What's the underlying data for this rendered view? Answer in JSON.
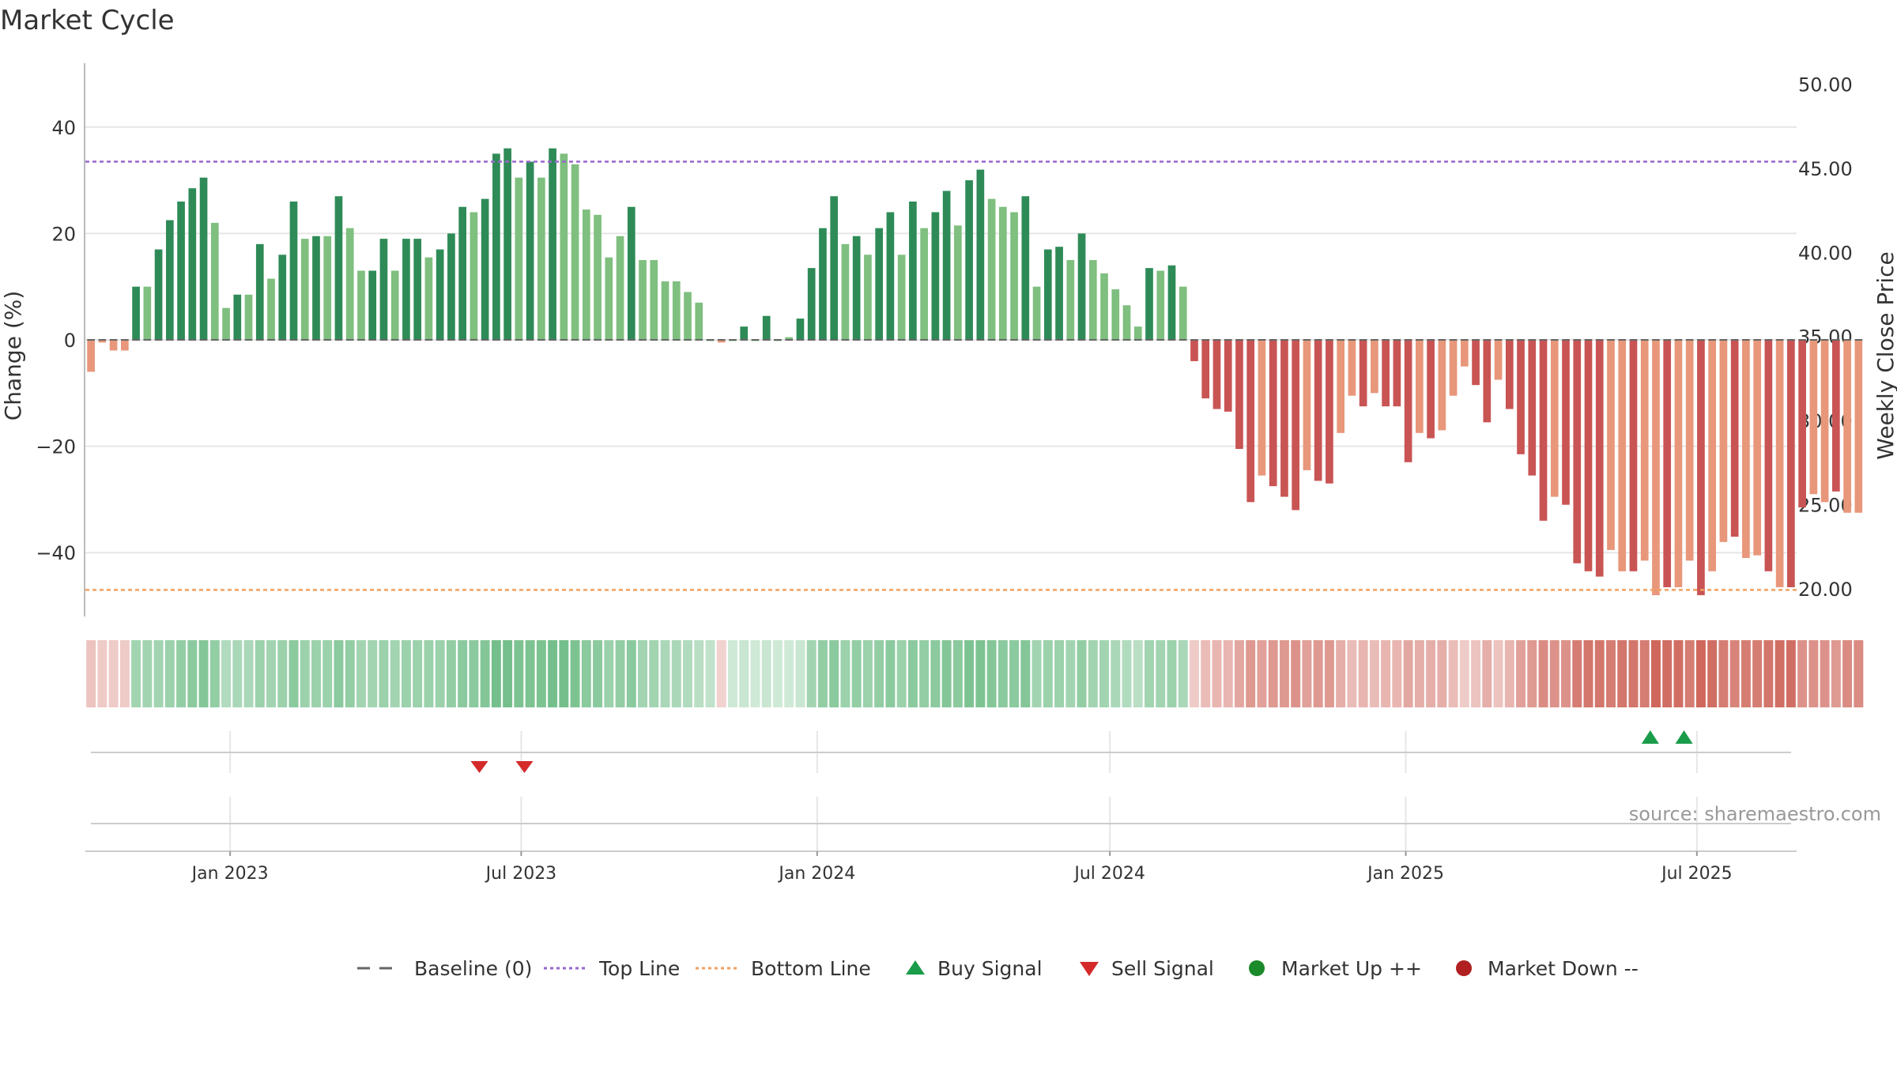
{
  "chart_data": {
    "type": "bar",
    "title": "Market Cycle",
    "ylabel_left": "Change (%)",
    "ylabel_right": "Weekly Close Price",
    "ylim_left": [
      -52,
      52
    ],
    "yticks_left": [
      40,
      20,
      0,
      -20,
      -40
    ],
    "yticks_left_labels": [
      "40",
      "20",
      "0",
      "−20",
      "−40"
    ],
    "ylim_right": [
      18.35,
      51.25
    ],
    "yticks_right": [
      50,
      45,
      40,
      35,
      30,
      25,
      20
    ],
    "yticks_right_labels": [
      "50.00",
      "45.00",
      "40.00",
      "35.00",
      "30.00",
      "25.00",
      "20.00"
    ],
    "x_start": "2022-10-03",
    "x_end": "2025-09-01",
    "xticks": [
      "2023-01-01",
      "2023-07-01",
      "2024-01-01",
      "2024-07-01",
      "2025-01-01",
      "2025-07-01"
    ],
    "xtick_labels": [
      "Jan 2023",
      "Jul 2023",
      "Jan 2024",
      "Jul 2024",
      "Jan 2025",
      "Jul 2025"
    ],
    "bar_start_date": "2022-10-03",
    "bar_interval_days": 7,
    "values": [
      -6,
      -0.5,
      -2,
      -2,
      10,
      10,
      17,
      22.5,
      26,
      28.5,
      30.5,
      22,
      6,
      8.5,
      8.5,
      18,
      11.5,
      16,
      26,
      19,
      19.5,
      19.5,
      27,
      21,
      13,
      13,
      19,
      13,
      19,
      19,
      15.5,
      17,
      20,
      25,
      24,
      26.5,
      35,
      36,
      30.5,
      33.5,
      30.5,
      36,
      35,
      33,
      24.5,
      23.5,
      15.5,
      19.5,
      25,
      15,
      15,
      11,
      11,
      9,
      7,
      0,
      -0.5,
      0,
      2.5,
      0,
      4.5,
      0,
      0.5,
      4,
      13.5,
      21,
      27,
      18,
      19.5,
      16,
      21,
      24,
      16,
      26,
      21,
      24,
      28,
      21.5,
      30,
      32,
      26.5,
      25,
      24,
      27,
      10,
      17,
      17.5,
      15,
      20,
      15,
      12.5,
      9.5,
      6.5,
      2.5,
      13.5,
      13,
      14,
      10,
      -4,
      -11,
      -13,
      -13.5,
      -20.5,
      -30.5,
      -25.5,
      -27.5,
      -29.5,
      -32,
      -24.5,
      -26.5,
      -27,
      -17.5,
      -10.5,
      -12.5,
      -10,
      -12.5,
      -12.5,
      -23,
      -17.5,
      -18.5,
      -17,
      -10.5,
      -5,
      -8.5,
      -15.5,
      -7.5,
      -13,
      -21.5,
      -25.5,
      -34,
      -29.5,
      -31,
      -42,
      -43.5,
      -44.5,
      -39.5,
      -43.5,
      -43.5,
      -41.5,
      -48,
      -46.5,
      -46.5,
      -41.5,
      -48,
      -43.5,
      -38,
      -37,
      -41,
      -40.5,
      -43.5,
      -46.5,
      -46.5,
      -31.5,
      -29,
      -30.5,
      -28.5,
      -32.5,
      -32.5
    ],
    "bar_strength": [
      0,
      0,
      0,
      0,
      1,
      0,
      1,
      1,
      1,
      1,
      1,
      0,
      0,
      1,
      0,
      1,
      0,
      1,
      1,
      0,
      1,
      0,
      1,
      0,
      0,
      1,
      1,
      0,
      1,
      1,
      0,
      1,
      1,
      1,
      0,
      1,
      1,
      1,
      0,
      1,
      0,
      1,
      0,
      0,
      0,
      0,
      0,
      0,
      1,
      0,
      0,
      0,
      0,
      0,
      0,
      0,
      0,
      0,
      1,
      0,
      1,
      0,
      0,
      1,
      1,
      1,
      1,
      0,
      1,
      0,
      1,
      1,
      0,
      1,
      0,
      1,
      1,
      0,
      1,
      1,
      0,
      0,
      0,
      1,
      0,
      1,
      1,
      0,
      1,
      0,
      0,
      0,
      0,
      0,
      1,
      0,
      1,
      0,
      1,
      1,
      1,
      1,
      1,
      1,
      0,
      1,
      1,
      1,
      0,
      1,
      1,
      0,
      0,
      1,
      0,
      1,
      1,
      1,
      0,
      1,
      0,
      0,
      0,
      1,
      1,
      0,
      1,
      1,
      1,
      1,
      0,
      1,
      1,
      1,
      1,
      0,
      0,
      1,
      0,
      0,
      1,
      0,
      0,
      1,
      0,
      0,
      1,
      0,
      0,
      1,
      0,
      1,
      1,
      0,
      0,
      1,
      0,
      0,
      0,
      1,
      1
    ],
    "price_line": {
      "note": "price line not drawn in image",
      "values": []
    },
    "top_line": 33.5,
    "bottom_line": -47,
    "baseline": 0,
    "heat_strip": [
      0.25,
      0.2,
      0.2,
      0.2,
      0.45,
      0.45,
      0.45,
      0.5,
      0.55,
      0.6,
      0.65,
      0.55,
      0.35,
      0.4,
      0.4,
      0.5,
      0.45,
      0.5,
      0.6,
      0.5,
      0.5,
      0.5,
      0.6,
      0.55,
      0.45,
      0.45,
      0.5,
      0.45,
      0.5,
      0.5,
      0.5,
      0.5,
      0.55,
      0.6,
      0.6,
      0.65,
      0.75,
      0.75,
      0.7,
      0.7,
      0.7,
      0.75,
      0.75,
      0.7,
      0.6,
      0.6,
      0.5,
      0.55,
      0.6,
      0.45,
      0.45,
      0.4,
      0.4,
      0.35,
      0.3,
      0.25,
      0.15,
      0.15,
      0.2,
      0.15,
      0.2,
      0.15,
      0.15,
      0.2,
      0.45,
      0.55,
      0.6,
      0.5,
      0.55,
      0.5,
      0.55,
      0.6,
      0.5,
      0.6,
      0.55,
      0.6,
      0.65,
      0.6,
      0.7,
      0.7,
      0.65,
      0.6,
      0.6,
      0.65,
      0.45,
      0.5,
      0.5,
      0.45,
      0.55,
      0.45,
      0.45,
      0.4,
      0.35,
      0.3,
      0.45,
      0.45,
      0.5,
      0.4,
      0.2,
      0.3,
      0.35,
      0.35,
      0.45,
      0.55,
      0.5,
      0.55,
      0.55,
      0.6,
      0.5,
      0.55,
      0.55,
      0.4,
      0.3,
      0.35,
      0.3,
      0.35,
      0.35,
      0.45,
      0.4,
      0.4,
      0.4,
      0.3,
      0.2,
      0.25,
      0.4,
      0.25,
      0.35,
      0.5,
      0.55,
      0.65,
      0.6,
      0.6,
      0.75,
      0.8,
      0.8,
      0.75,
      0.8,
      0.8,
      0.75,
      0.9,
      0.85,
      0.85,
      0.75,
      0.9,
      0.85,
      0.75,
      0.7,
      0.75,
      0.75,
      0.8,
      0.85,
      0.85,
      0.6,
      0.6,
      0.6,
      0.55,
      0.65,
      0.65
    ],
    "signals": [
      {
        "type": "sell",
        "date": "2023-06-05"
      },
      {
        "type": "sell",
        "date": "2023-07-03"
      },
      {
        "type": "buy",
        "date": "2025-06-02"
      },
      {
        "type": "buy",
        "date": "2025-06-23"
      }
    ],
    "market_markers": [],
    "grid": true,
    "legend_position": "bottom-center",
    "legend": [
      {
        "label": "Baseline (0)",
        "symbol": "dash"
      },
      {
        "label": "Top Line",
        "symbol": "dotted-purple"
      },
      {
        "label": "Bottom Line",
        "symbol": "dotted-orange"
      },
      {
        "label": "Buy Signal",
        "symbol": "triangle-up"
      },
      {
        "label": "Sell Signal",
        "symbol": "triangle-down"
      },
      {
        "label": "Market Up ++",
        "symbol": "circle-green"
      },
      {
        "label": "Market Down --",
        "symbol": "circle-red"
      }
    ],
    "source": "source: sharemaestro.com",
    "colors": {
      "pos_strong": "#2e8b57",
      "pos_weak": "#7fbf7f",
      "neg_strong": "#c95454",
      "neg_weak": "#e8977a",
      "top_line": "#9966cc",
      "bottom_line": "#f0a060",
      "buy": "#1a9c4a",
      "sell": "#d42a2a",
      "market_up": "#1a8a2a",
      "market_down": "#b02020",
      "baseline": "#666666",
      "grid": "#e6e6e6"
    }
  }
}
